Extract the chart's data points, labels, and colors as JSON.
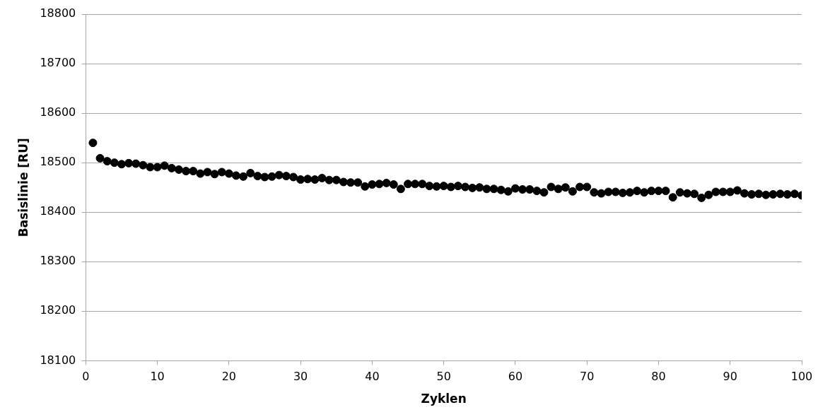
{
  "chart_data": {
    "type": "scatter",
    "xlabel": "Zyklen",
    "ylabel": "Basislinie [RU]",
    "x": [
      1,
      2,
      3,
      4,
      5,
      6,
      7,
      8,
      9,
      10,
      11,
      12,
      13,
      14,
      15,
      16,
      17,
      18,
      19,
      20,
      21,
      22,
      23,
      24,
      25,
      26,
      27,
      28,
      29,
      30,
      31,
      32,
      33,
      34,
      35,
      36,
      37,
      38,
      39,
      40,
      41,
      42,
      43,
      44,
      45,
      46,
      47,
      48,
      49,
      50,
      51,
      52,
      53,
      54,
      55,
      56,
      57,
      58,
      59,
      60,
      61,
      62,
      63,
      64,
      65,
      66,
      67,
      68,
      69,
      70,
      71,
      72,
      73,
      74,
      75,
      76,
      77,
      78,
      79,
      80,
      81,
      82,
      83,
      84,
      85,
      86,
      87,
      88,
      89,
      90,
      91,
      92,
      93,
      94,
      95,
      96,
      97,
      98,
      99,
      100
    ],
    "series": [
      {
        "color": "#000000",
        "values": [
          18540,
          18509,
          18503,
          18500,
          18497,
          18499,
          18498,
          18495,
          18491,
          18491,
          18494,
          18489,
          18486,
          18483,
          18483,
          18478,
          18481,
          18477,
          18481,
          18478,
          18474,
          18472,
          18479,
          18473,
          18471,
          18472,
          18475,
          18473,
          18471,
          18466,
          18467,
          18466,
          18469,
          18465,
          18465,
          18461,
          18460,
          18460,
          18452,
          18456,
          18457,
          18459,
          18456,
          18447,
          18457,
          18457,
          18457,
          18453,
          18452,
          18453,
          18451,
          18453,
          18451,
          18449,
          18450,
          18447,
          18447,
          18445,
          18442,
          18448,
          18446,
          18446,
          18443,
          18440,
          18451,
          18447,
          18450,
          18442,
          18451,
          18451,
          18440,
          18438,
          18441,
          18441,
          18439,
          18440,
          18443,
          18440,
          18443,
          18443,
          18443,
          18430,
          18440,
          18438,
          18437,
          18429,
          18435,
          18441,
          18441,
          18441,
          18444,
          18438,
          18436,
          18437,
          18435,
          18436,
          18437,
          18436,
          18437,
          18434
        ]
      }
    ],
    "xlim": [
      0,
      100
    ],
    "xticks": [
      0,
      10,
      20,
      30,
      40,
      50,
      60,
      70,
      80,
      90,
      100
    ],
    "ylim": [
      18100,
      18800
    ],
    "yticks": [
      18100,
      18200,
      18300,
      18400,
      18500,
      18600,
      18700,
      18800
    ],
    "grid": "y",
    "legend": false,
    "marker": "circle"
  }
}
